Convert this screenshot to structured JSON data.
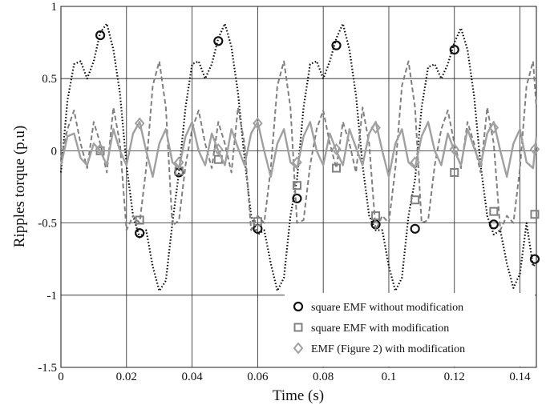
{
  "chart_data": {
    "type": "line",
    "title": "",
    "xlabel": "Time (s)",
    "ylabel": "Ripples torque (p.u)",
    "xlim": [
      0,
      0.145
    ],
    "ylim": [
      -1.5,
      1
    ],
    "xticks": [
      0,
      0.02,
      0.04,
      0.06,
      0.08,
      0.1,
      0.12,
      0.14
    ],
    "xtick_labels": [
      "0",
      "0.02",
      "0.04",
      "0.06",
      "0.08",
      "0.1",
      "0.12",
      "0.14"
    ],
    "yticks": [
      -1.5,
      -1,
      -0.5,
      0,
      0.5,
      1
    ],
    "ytick_labels": [
      "-1.5",
      "-1",
      "-0.5",
      "0",
      "0.5",
      "1"
    ],
    "grid": true,
    "legend_position": "bottom-right",
    "series": [
      {
        "name": "square EMF without modification",
        "line_style": "dotted",
        "marker": "circle",
        "color": "#111111",
        "x": [
          0,
          0.002,
          0.004,
          0.006,
          0.008,
          0.01,
          0.012,
          0.014,
          0.016,
          0.018,
          0.02,
          0.022,
          0.024,
          0.026,
          0.028,
          0.03,
          0.032,
          0.034,
          0.036,
          0.038,
          0.04,
          0.042,
          0.044,
          0.046,
          0.048,
          0.05,
          0.052,
          0.054,
          0.056,
          0.058,
          0.06,
          0.062,
          0.064,
          0.066,
          0.068,
          0.07,
          0.072,
          0.074,
          0.076,
          0.078,
          0.08,
          0.082,
          0.084,
          0.086,
          0.088,
          0.09,
          0.092,
          0.094,
          0.096,
          0.098,
          0.1,
          0.102,
          0.104,
          0.106,
          0.108,
          0.11,
          0.112,
          0.114,
          0.116,
          0.118,
          0.12,
          0.122,
          0.124,
          0.126,
          0.128,
          0.13,
          0.132,
          0.134,
          0.136,
          0.138,
          0.14,
          0.142,
          0.144,
          0.145
        ],
        "y": [
          -0.15,
          0.35,
          0.6,
          0.62,
          0.5,
          0.62,
          0.82,
          0.88,
          0.7,
          0.4,
          -0.1,
          -0.45,
          -0.6,
          -0.55,
          -0.8,
          -0.97,
          -0.9,
          -0.5,
          -0.15,
          0.3,
          0.6,
          0.62,
          0.5,
          0.6,
          0.78,
          0.88,
          0.72,
          0.4,
          -0.05,
          -0.45,
          -0.58,
          -0.55,
          -0.78,
          -0.97,
          -0.88,
          -0.45,
          -0.2,
          0.3,
          0.6,
          0.62,
          0.5,
          0.62,
          0.78,
          0.88,
          0.7,
          0.38,
          -0.1,
          -0.45,
          -0.55,
          -0.55,
          -0.8,
          -0.97,
          -0.88,
          -0.45,
          -0.2,
          0.3,
          0.58,
          0.6,
          0.5,
          0.6,
          0.75,
          0.85,
          0.7,
          0.38,
          -0.1,
          -0.45,
          -0.58,
          -0.55,
          -0.78,
          -0.95,
          -0.85,
          -0.5,
          -0.8,
          -0.78
        ],
        "markers_x": [
          0.012,
          0.024,
          0.036,
          0.048,
          0.06,
          0.072,
          0.084,
          0.096,
          0.108,
          0.12,
          0.132,
          0.1445
        ],
        "markers_y": [
          0.8,
          -0.57,
          -0.15,
          0.76,
          -0.54,
          -0.33,
          0.73,
          -0.51,
          -0.54,
          0.7,
          -0.51,
          -0.75
        ]
      },
      {
        "name": "square EMF with modification",
        "line_style": "dashed",
        "marker": "square",
        "color": "#808080",
        "x": [
          0,
          0.002,
          0.004,
          0.006,
          0.008,
          0.01,
          0.012,
          0.014,
          0.016,
          0.018,
          0.02,
          0.022,
          0.024,
          0.026,
          0.028,
          0.03,
          0.032,
          0.034,
          0.036,
          0.038,
          0.04,
          0.042,
          0.044,
          0.046,
          0.048,
          0.05,
          0.052,
          0.054,
          0.056,
          0.058,
          0.06,
          0.062,
          0.064,
          0.066,
          0.068,
          0.07,
          0.072,
          0.074,
          0.076,
          0.078,
          0.08,
          0.082,
          0.084,
          0.086,
          0.088,
          0.09,
          0.092,
          0.094,
          0.096,
          0.098,
          0.1,
          0.102,
          0.104,
          0.106,
          0.108,
          0.11,
          0.112,
          0.114,
          0.116,
          0.118,
          0.12,
          0.122,
          0.124,
          0.126,
          0.128,
          0.13,
          0.132,
          0.134,
          0.136,
          0.138,
          0.14,
          0.142,
          0.144,
          0.145
        ],
        "y": [
          -0.05,
          0.15,
          0.28,
          0.05,
          -0.12,
          0.2,
          0.05,
          -0.15,
          0.3,
          0.05,
          -0.55,
          -0.45,
          -0.5,
          -0.12,
          0.45,
          0.62,
          0.3,
          -0.52,
          -0.48,
          -0.1,
          0.15,
          0.28,
          0.05,
          -0.12,
          0.2,
          0.05,
          -0.15,
          0.3,
          0.05,
          -0.55,
          -0.45,
          -0.5,
          -0.12,
          0.45,
          0.62,
          0.3,
          -0.5,
          -0.48,
          -0.1,
          0.15,
          0.28,
          0.05,
          -0.12,
          0.2,
          0.05,
          -0.15,
          0.3,
          0.05,
          -0.55,
          -0.45,
          -0.5,
          -0.12,
          0.45,
          0.62,
          0.3,
          -0.5,
          -0.48,
          -0.1,
          0.15,
          0.28,
          0.05,
          -0.12,
          0.2,
          0.05,
          -0.15,
          0.3,
          0.05,
          -0.55,
          -0.45,
          -0.5,
          -0.12,
          0.45,
          0.62,
          0.3
        ],
        "markers_x": [
          0.012,
          0.024,
          0.036,
          0.048,
          0.06,
          0.072,
          0.084,
          0.096,
          0.108,
          0.12,
          0.132,
          0.1445
        ],
        "markers_y": [
          0.0,
          -0.48,
          -0.14,
          -0.06,
          -0.49,
          -0.24,
          -0.12,
          -0.45,
          -0.34,
          -0.15,
          -0.42,
          -0.44
        ]
      },
      {
        "name": "EMF (Figure 2) with modification",
        "line_style": "solid",
        "marker": "diamond",
        "color": "#a0a0a0",
        "x": [
          0,
          0.002,
          0.004,
          0.006,
          0.008,
          0.01,
          0.012,
          0.014,
          0.016,
          0.018,
          0.02,
          0.022,
          0.024,
          0.026,
          0.028,
          0.03,
          0.032,
          0.034,
          0.036,
          0.038,
          0.04,
          0.042,
          0.044,
          0.046,
          0.048,
          0.05,
          0.052,
          0.054,
          0.056,
          0.058,
          0.06,
          0.062,
          0.064,
          0.066,
          0.068,
          0.07,
          0.072,
          0.074,
          0.076,
          0.078,
          0.08,
          0.082,
          0.084,
          0.086,
          0.088,
          0.09,
          0.092,
          0.094,
          0.096,
          0.098,
          0.1,
          0.102,
          0.104,
          0.106,
          0.108,
          0.11,
          0.112,
          0.114,
          0.116,
          0.118,
          0.12,
          0.122,
          0.124,
          0.126,
          0.128,
          0.13,
          0.132,
          0.134,
          0.136,
          0.138,
          0.14,
          0.142,
          0.144,
          0.145
        ],
        "y": [
          -0.1,
          0.1,
          0.12,
          -0.05,
          -0.1,
          0.05,
          0.0,
          -0.1,
          0.15,
          0.0,
          -0.1,
          0.12,
          0.2,
          0.0,
          -0.18,
          0.05,
          0.15,
          -0.08,
          -0.12,
          0.1,
          0.2,
          0.0,
          -0.1,
          0.12,
          0.0,
          -0.1,
          0.15,
          0.02,
          -0.1,
          0.12,
          0.2,
          0.0,
          -0.18,
          0.05,
          0.15,
          -0.08,
          -0.12,
          0.1,
          0.2,
          0.0,
          -0.1,
          0.12,
          0.0,
          -0.1,
          0.15,
          0.02,
          -0.1,
          0.12,
          0.2,
          0.0,
          -0.18,
          0.05,
          0.15,
          -0.08,
          -0.12,
          0.1,
          0.2,
          0.0,
          -0.1,
          0.12,
          0.0,
          -0.1,
          0.15,
          0.02,
          -0.1,
          0.12,
          0.2,
          0.0,
          -0.18,
          0.05,
          0.15,
          -0.08,
          -0.12,
          0.1
        ],
        "markers_x": [
          0.012,
          0.024,
          0.036,
          0.048,
          0.06,
          0.072,
          0.084,
          0.096,
          0.108,
          0.12,
          0.132,
          0.1445
        ],
        "markers_y": [
          0.01,
          0.19,
          -0.08,
          0.01,
          0.19,
          -0.08,
          0.01,
          0.16,
          -0.08,
          0.01,
          0.16,
          0.01
        ]
      }
    ]
  }
}
